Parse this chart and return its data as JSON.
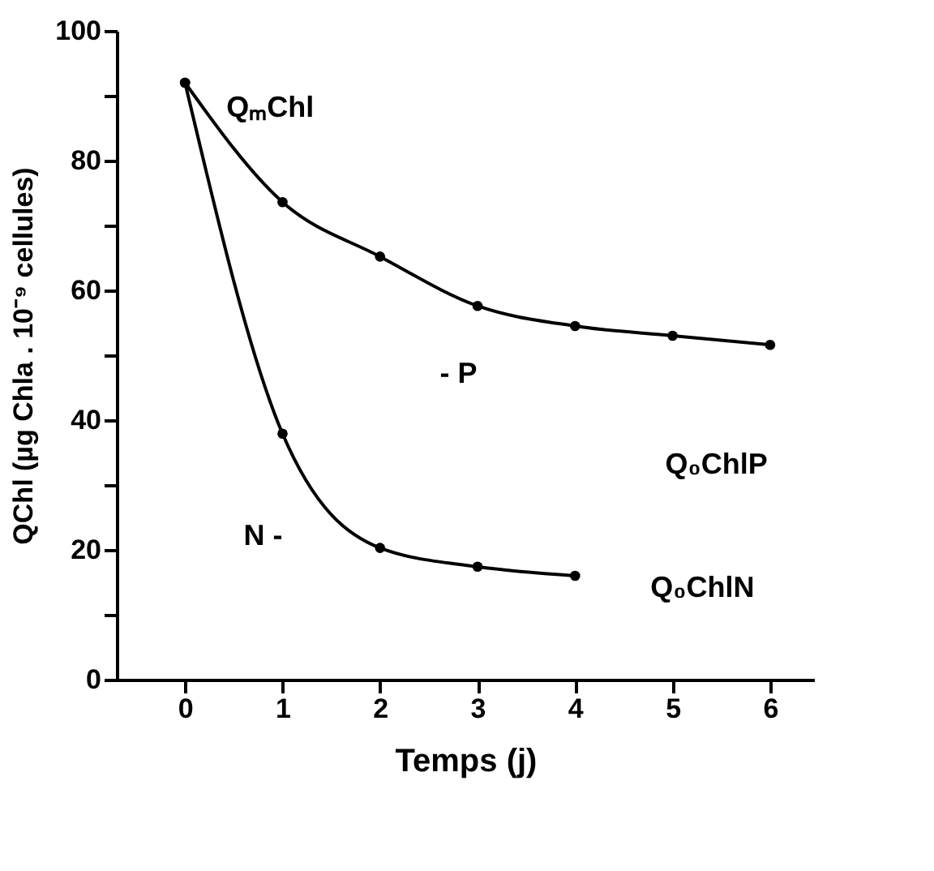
{
  "chart_data": {
    "type": "line",
    "xlabel": "Temps   (j)",
    "ylabel": "QChl (µg Chla . 10⁻⁹ cellules)",
    "x": [
      0,
      1,
      2,
      3,
      4,
      5,
      6
    ],
    "series": [
      {
        "color": "#000000",
        "values": [
          92,
          73.6,
          65.2,
          57.6,
          54.5,
          53,
          51.6
        ]
      },
      {
        "color": "#000000",
        "values": [
          92,
          37.9,
          20.3,
          17.4,
          16,
          null,
          null
        ]
      }
    ],
    "xlim": [
      -0.7,
      6.45
    ],
    "ylim": [
      0,
      100
    ],
    "xticks": [
      0,
      1,
      2,
      3,
      4,
      5,
      6
    ],
    "yticks": [
      0,
      {
        "value": 10,
        "label": null
      },
      20,
      {
        "value": 30,
        "label": null
      },
      40,
      {
        "value": 50,
        "label": null
      },
      60,
      {
        "value": 70,
        "label": null
      },
      80,
      {
        "value": 90,
        "label": null
      },
      100
    ],
    "marker": "circle",
    "line_style": "solid",
    "grid": false,
    "annotations": [
      "QₘChl",
      "- P",
      "N -",
      "Q₀ChlP",
      "Q₀ChlN"
    ]
  }
}
